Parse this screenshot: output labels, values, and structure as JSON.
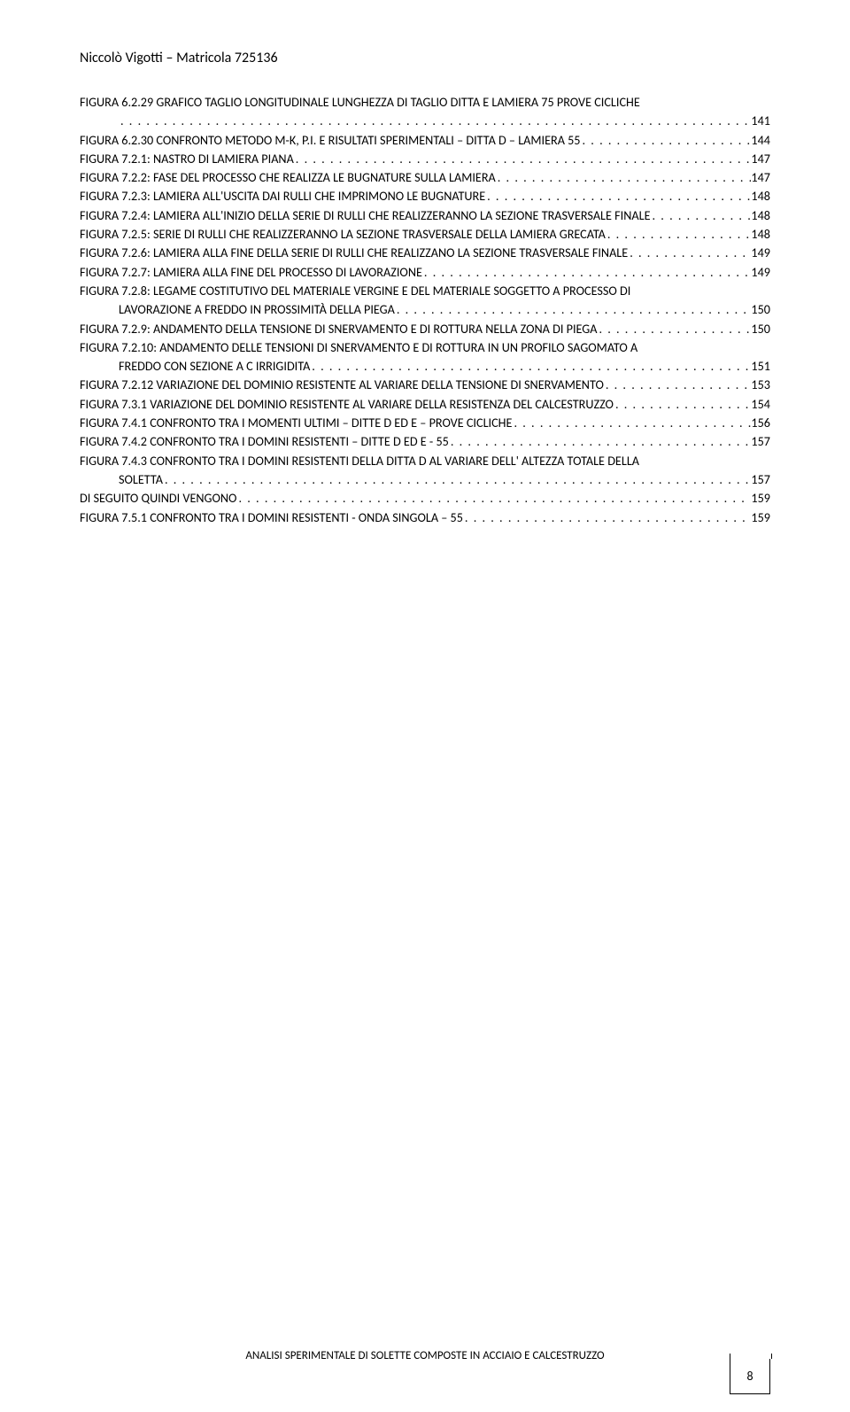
{
  "header": "Niccolò Vigotti – Matricola 725136",
  "footer": "ANALISI SPERIMENTALE DI SOLETTE COMPOSTE IN ACCIAIO E CALCESTRUZZO",
  "page_number": "8",
  "entries": [
    {
      "label": "FIGURA 6.2.29 GRAFICO TAGLIO LONGITUDINALE LUNGHEZZA DI TAGLIO DITTA E LAMIERA 75 PROVE CICLICHE",
      "page": "141",
      "indent": false,
      "nowrap_second": true
    },
    {
      "label": "FIGURA 6.2.30 CONFRONTO METODO M-K, P.I. E RISULTATI SPERIMENTALI – DITTA D – LAMIERA 55",
      "page": "144",
      "indent": false
    },
    {
      "label": "FIGURA 7.2.1: NASTRO DI LAMIERA PIANA",
      "page": "147",
      "indent": false
    },
    {
      "label": "FIGURA 7.2.2: FASE DEL PROCESSO CHE REALIZZA LE BUGNATURE SULLA LAMIERA",
      "page": "147",
      "indent": false
    },
    {
      "label": "FIGURA 7.2.3: LAMIERA ALL'USCITA DAI RULLI CHE IMPRIMONO LE BUGNATURE",
      "page": "148",
      "indent": false
    },
    {
      "label": "FIGURA 7.2.4: LAMIERA ALL'INIZIO DELLA SERIE DI RULLI CHE REALIZZERANNO LA SEZIONE TRASVERSALE FINALE",
      "page": "148",
      "indent": false
    },
    {
      "label": "FIGURA 7.2.5: SERIE DI RULLI CHE REALIZZERANNO LA SEZIONE TRASVERSALE DELLA LAMIERA GRECATA",
      "page": "148",
      "indent": false
    },
    {
      "label": "FIGURA 7.2.6: LAMIERA ALLA FINE DELLA SERIE DI RULLI CHE REALIZZANO LA SEZIONE TRASVERSALE FINALE",
      "page": "149",
      "indent": false
    },
    {
      "label": "FIGURA 7.2.7: LAMIERA ALLA FINE DEL PROCESSO DI LAVORAZIONE",
      "page": "149",
      "indent": false
    },
    {
      "label": "FIGURA 7.2.8: LEGAME COSTITUTIVO DEL MATERIALE VERGINE E DEL MATERIALE SOGGETTO A PROCESSO DI",
      "page": "",
      "indent": false,
      "noPageLine": true
    },
    {
      "label": "LAVORAZIONE A FREDDO IN PROSSIMITÀ DELLA PIEGA",
      "page": "150",
      "indent": true
    },
    {
      "label": "FIGURA 7.2.9: ANDAMENTO DELLA TENSIONE DI SNERVAMENTO E DI ROTTURA NELLA ZONA DI PIEGA",
      "page": "150",
      "indent": false
    },
    {
      "label": "FIGURA 7.2.10: ANDAMENTO DELLE TENSIONI DI SNERVAMENTO E DI ROTTURA IN UN PROFILO SAGOMATO A",
      "page": "",
      "indent": false,
      "noPageLine": true
    },
    {
      "label": "FREDDO CON SEZIONE A C IRRIGIDITA",
      "page": "151",
      "indent": true
    },
    {
      "label": "FIGURA 7.2.12 VARIAZIONE DEL DOMINIO RESISTENTE AL VARIARE DELLA TENSIONE DI SNERVAMENTO",
      "page": "153",
      "indent": false
    },
    {
      "label": "FIGURA 7.3.1 VARIAZIONE DEL DOMINIO RESISTENTE AL VARIARE DELLA RESISTENZA DEL CALCESTRUZZO",
      "page": "154",
      "indent": false
    },
    {
      "label": "FIGURA 7.4.1 CONFRONTO TRA I MOMENTI ULTIMI – DITTE D ED E – PROVE CICLICHE",
      "page": "156",
      "indent": false
    },
    {
      "label": "FIGURA 7.4.2 CONFRONTO TRA I DOMINI RESISTENTI – DITTE D ED E - 55",
      "page": "157",
      "indent": false
    },
    {
      "label": "FIGURA 7.4.3 CONFRONTO TRA I DOMINI RESISTENTI DELLA DITTA D AL VARIARE DELL' ALTEZZA TOTALE DELLA",
      "page": "",
      "indent": false,
      "noPageLine": true
    },
    {
      "label": "SOLETTA",
      "page": "157",
      "indent": true
    },
    {
      "label": "DI SEGUITO QUINDI VENGONO",
      "page": "159",
      "indent": false
    },
    {
      "label": "FIGURA 7.5.1 CONFRONTO TRA I DOMINI RESISTENTI  - ONDA SINGOLA – 55",
      "page": "159",
      "indent": false
    }
  ]
}
